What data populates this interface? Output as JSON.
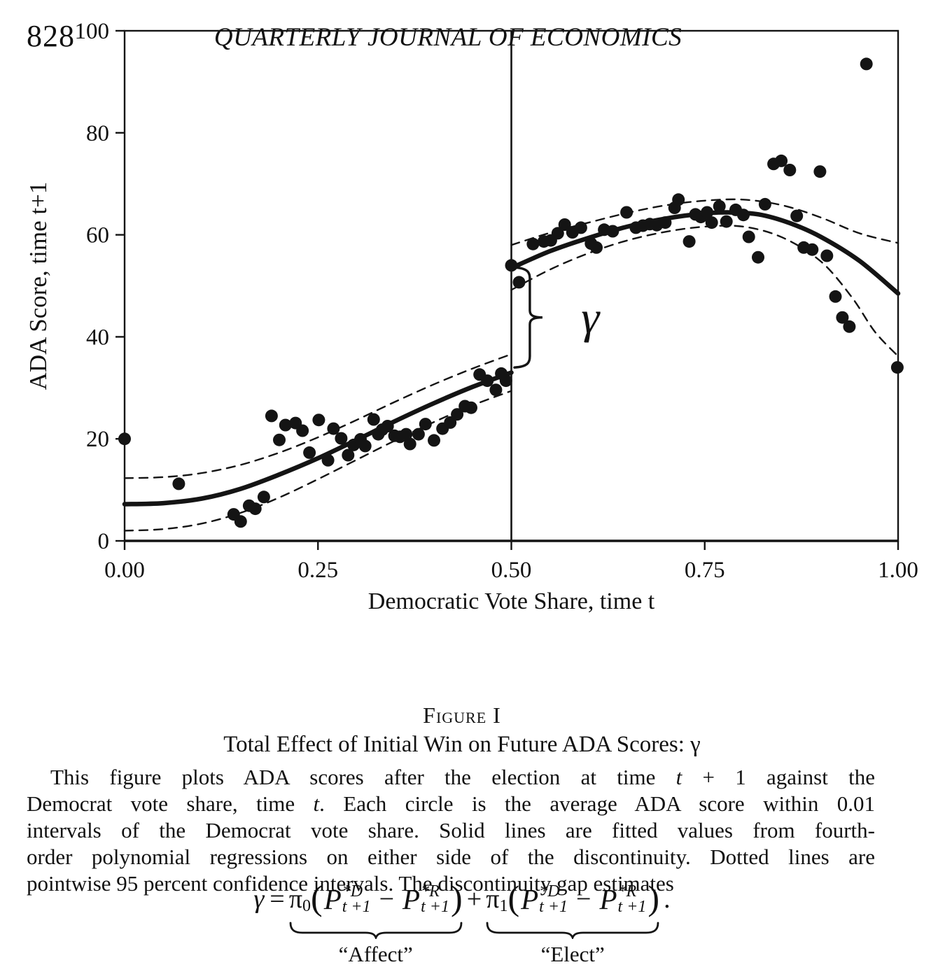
{
  "header": {
    "page_number": "828",
    "journal_title": "QUARTERLY JOURNAL OF ECONOMICS"
  },
  "chart_data": {
    "type": "scatter",
    "title": "",
    "xlabel": "Democratic Vote Share, time t",
    "ylabel": "ADA Score, time t+1",
    "xlim": [
      0,
      1
    ],
    "ylim": [
      0,
      100
    ],
    "grid": false,
    "xticks": [
      {
        "v": 0.0,
        "label": "0.00"
      },
      {
        "v": 0.25,
        "label": "0.25"
      },
      {
        "v": 0.5,
        "label": "0.50"
      },
      {
        "v": 0.75,
        "label": "0.75"
      },
      {
        "v": 1.0,
        "label": "1.00"
      }
    ],
    "yticks": [
      {
        "v": 0,
        "label": "0"
      },
      {
        "v": 20,
        "label": "20"
      },
      {
        "v": 40,
        "label": "40"
      },
      {
        "v": 60,
        "label": "60"
      },
      {
        "v": 80,
        "label": "80"
      },
      {
        "v": 100,
        "label": "100"
      }
    ],
    "discontinuity_x": 0.5,
    "series": [
      {
        "id": "scatter-left",
        "name": "Average ADA score (Democrat vote share < 0.5)",
        "style": "scatter",
        "points": [
          [
            0.0,
            20.0
          ],
          [
            0.07,
            11.2
          ],
          [
            0.141,
            5.2
          ],
          [
            0.15,
            3.8
          ],
          [
            0.161,
            6.9
          ],
          [
            0.169,
            6.3
          ],
          [
            0.18,
            8.6
          ],
          [
            0.19,
            24.5
          ],
          [
            0.2,
            19.8
          ],
          [
            0.208,
            22.7
          ],
          [
            0.221,
            23.1
          ],
          [
            0.23,
            21.6
          ],
          [
            0.239,
            17.3
          ],
          [
            0.251,
            23.7
          ],
          [
            0.263,
            15.8
          ],
          [
            0.27,
            22.0
          ],
          [
            0.28,
            20.1
          ],
          [
            0.289,
            16.8
          ],
          [
            0.296,
            18.8
          ],
          [
            0.305,
            19.9
          ],
          [
            0.311,
            18.6
          ],
          [
            0.322,
            23.8
          ],
          [
            0.328,
            20.9
          ],
          [
            0.333,
            21.8
          ],
          [
            0.34,
            22.5
          ],
          [
            0.349,
            20.6
          ],
          [
            0.356,
            20.4
          ],
          [
            0.364,
            20.9
          ],
          [
            0.369,
            19.0
          ],
          [
            0.38,
            20.9
          ],
          [
            0.389,
            22.9
          ],
          [
            0.4,
            19.7
          ],
          [
            0.411,
            22.0
          ],
          [
            0.421,
            23.2
          ],
          [
            0.43,
            24.8
          ],
          [
            0.44,
            26.4
          ],
          [
            0.448,
            26.1
          ],
          [
            0.459,
            32.6
          ],
          [
            0.469,
            31.4
          ],
          [
            0.48,
            29.6
          ],
          [
            0.487,
            32.8
          ],
          [
            0.493,
            31.4
          ]
        ]
      },
      {
        "id": "scatter-right",
        "name": "Average ADA score (Democrat vote share > 0.5)",
        "style": "scatter",
        "points": [
          [
            0.5,
            54.0
          ],
          [
            0.51,
            50.7
          ],
          [
            0.528,
            58.2
          ],
          [
            0.542,
            58.7
          ],
          [
            0.551,
            58.9
          ],
          [
            0.56,
            60.3
          ],
          [
            0.569,
            62.0
          ],
          [
            0.579,
            60.5
          ],
          [
            0.59,
            61.4
          ],
          [
            0.603,
            58.3
          ],
          [
            0.61,
            57.5
          ],
          [
            0.62,
            61.0
          ],
          [
            0.631,
            60.7
          ],
          [
            0.649,
            64.4
          ],
          [
            0.661,
            61.4
          ],
          [
            0.67,
            61.8
          ],
          [
            0.679,
            62.1
          ],
          [
            0.688,
            61.9
          ],
          [
            0.699,
            62.4
          ],
          [
            0.711,
            65.3
          ],
          [
            0.716,
            66.9
          ],
          [
            0.73,
            58.7
          ],
          [
            0.738,
            64.0
          ],
          [
            0.745,
            63.5
          ],
          [
            0.753,
            64.4
          ],
          [
            0.759,
            62.4
          ],
          [
            0.769,
            65.6
          ],
          [
            0.778,
            62.6
          ],
          [
            0.79,
            64.9
          ],
          [
            0.8,
            63.9
          ],
          [
            0.807,
            59.6
          ],
          [
            0.819,
            55.6
          ],
          [
            0.828,
            66.0
          ],
          [
            0.839,
            73.9
          ],
          [
            0.849,
            74.5
          ],
          [
            0.86,
            72.7
          ],
          [
            0.869,
            63.7
          ],
          [
            0.878,
            57.5
          ],
          [
            0.889,
            57.1
          ],
          [
            0.899,
            72.4
          ],
          [
            0.908,
            55.9
          ],
          [
            0.919,
            47.9
          ],
          [
            0.928,
            43.8
          ],
          [
            0.937,
            42.0
          ],
          [
            0.959,
            93.5
          ],
          [
            0.999,
            34.0
          ]
        ]
      },
      {
        "id": "fit-left",
        "name": "Fitted 4th-order polynomial (left of discontinuity)",
        "style": "solid",
        "points": [
          [
            0,
            7.2
          ],
          [
            0.05,
            7.4
          ],
          [
            0.1,
            8.3
          ],
          [
            0.15,
            10.2
          ],
          [
            0.2,
            13.0
          ],
          [
            0.25,
            16.2
          ],
          [
            0.3,
            19.8
          ],
          [
            0.35,
            23.5
          ],
          [
            0.4,
            27.0
          ],
          [
            0.45,
            30.2
          ],
          [
            0.5,
            33.0
          ]
        ]
      },
      {
        "id": "fit-right",
        "name": "Fitted 4th-order polynomial (right of discontinuity)",
        "style": "solid",
        "points": [
          [
            0.5,
            53.5
          ],
          [
            0.55,
            56.8
          ],
          [
            0.6,
            59.4
          ],
          [
            0.65,
            61.6
          ],
          [
            0.7,
            63.2
          ],
          [
            0.75,
            64.2
          ],
          [
            0.78,
            64.4
          ],
          [
            0.82,
            64.0
          ],
          [
            0.86,
            62.3
          ],
          [
            0.9,
            59.6
          ],
          [
            0.95,
            54.9
          ],
          [
            1.0,
            48.5
          ]
        ]
      },
      {
        "id": "ci-upper-left",
        "name": "95% confidence interval upper (left)",
        "style": "dashed",
        "points": [
          [
            0,
            12.3
          ],
          [
            0.05,
            12.5
          ],
          [
            0.1,
            13.3
          ],
          [
            0.15,
            14.9
          ],
          [
            0.2,
            17.3
          ],
          [
            0.25,
            20.3
          ],
          [
            0.3,
            23.7
          ],
          [
            0.35,
            27.3
          ],
          [
            0.4,
            30.7
          ],
          [
            0.45,
            33.8
          ],
          [
            0.5,
            36.6
          ]
        ]
      },
      {
        "id": "ci-lower-left",
        "name": "95% confidence interval lower (left)",
        "style": "dashed",
        "points": [
          [
            0,
            2.0
          ],
          [
            0.05,
            2.3
          ],
          [
            0.1,
            3.4
          ],
          [
            0.15,
            5.5
          ],
          [
            0.2,
            8.5
          ],
          [
            0.25,
            12.1
          ],
          [
            0.3,
            15.9
          ],
          [
            0.35,
            19.7
          ],
          [
            0.4,
            23.3
          ],
          [
            0.45,
            26.6
          ],
          [
            0.5,
            29.4
          ]
        ]
      },
      {
        "id": "ci-upper-right",
        "name": "95% confidence interval upper (right)",
        "style": "dashed",
        "points": [
          [
            0.5,
            58.0
          ],
          [
            0.55,
            60.4
          ],
          [
            0.6,
            62.4
          ],
          [
            0.65,
            64.3
          ],
          [
            0.7,
            65.8
          ],
          [
            0.75,
            66.7
          ],
          [
            0.8,
            66.9
          ],
          [
            0.85,
            65.8
          ],
          [
            0.9,
            63.4
          ],
          [
            0.95,
            60.3
          ],
          [
            1.0,
            58.4
          ]
        ]
      },
      {
        "id": "ci-lower-right",
        "name": "95% confidence interval lower (right)",
        "style": "dashed",
        "points": [
          [
            0.5,
            49.2
          ],
          [
            0.55,
            53.2
          ],
          [
            0.6,
            56.4
          ],
          [
            0.65,
            58.9
          ],
          [
            0.7,
            60.6
          ],
          [
            0.75,
            61.6
          ],
          [
            0.8,
            61.6
          ],
          [
            0.85,
            59.5
          ],
          [
            0.9,
            54.8
          ],
          [
            0.94,
            47.8
          ],
          [
            0.97,
            41.0
          ],
          [
            1.0,
            36.2
          ]
        ]
      }
    ],
    "annotation": {
      "gamma_label": "γ",
      "gamma_pos": [
        0.602,
        40.8
      ],
      "brace": {
        "x": 0.504,
        "y_top": 53.6,
        "y_bottom": 34.0
      }
    },
    "ink_color": "#141414"
  },
  "caption": {
    "figure_label": "Figure I",
    "figure_title": "Total Effect of Initial Win on Future ADA Scores: γ"
  },
  "paragraph": {
    "lines": [
      "This figure plots ADA scores after the election at time *t* + 1 against the",
      "Democrat vote share, time *t*. Each circle is the average ADA score within 0.01",
      "intervals of the Democrat vote share. Solid lines are fitted values from fourth-",
      "order polynomial regressions on either side of the discontinuity. Dotted lines are",
      "pointwise 95 percent confidence intervals. The discontinuity gap estimates"
    ]
  },
  "equation": {
    "gamma": "γ",
    "equals": "=",
    "pi": "π",
    "sub_zero": "0",
    "sub_one": "1",
    "open_paren": "(",
    "close_paren": ")",
    "p_symbol": "P",
    "sup_d": "*D",
    "sup_r": "*R",
    "sub_t": "t +1",
    "minus": "−",
    "plus": "+",
    "period": ".",
    "affect_label": "“Affect”",
    "elect_label": "“Elect”"
  }
}
